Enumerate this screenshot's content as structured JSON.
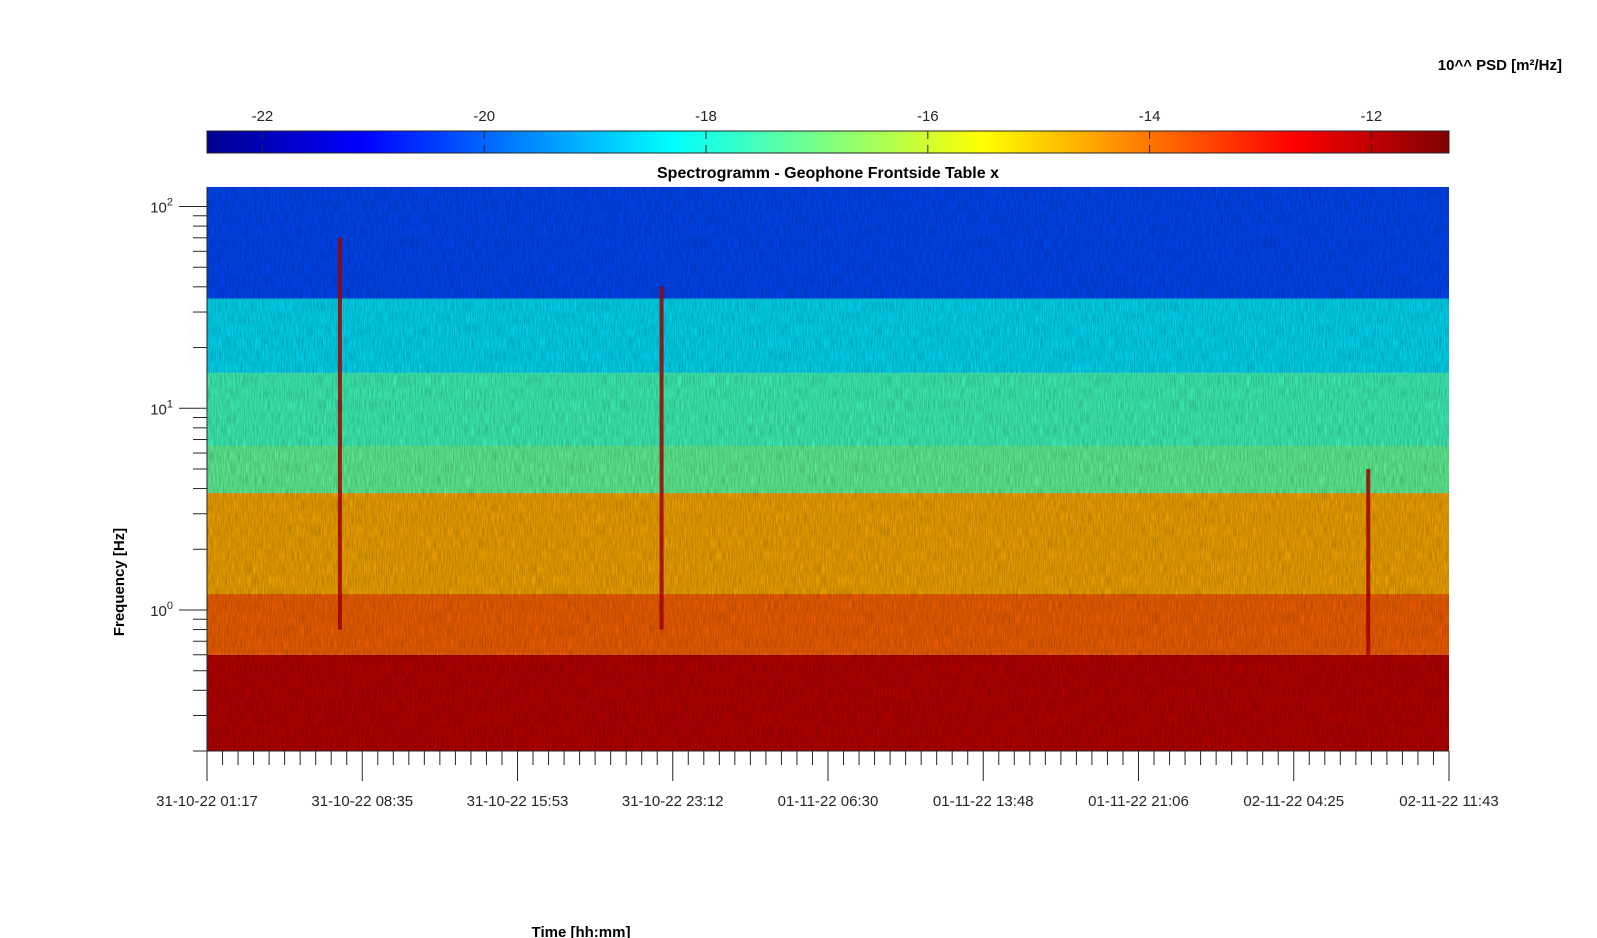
{
  "chart_data": {
    "type": "heatmap",
    "title": "Spectrogramm - Geophone Frontside Table x",
    "xlabel": "Time [hh:mm]",
    "ylabel": "Frequency [Hz]",
    "colorbar": {
      "label": "10^^ PSD [m²/Hz]",
      "range": [
        -22.5,
        -11.3
      ],
      "ticks": [
        -22,
        -20,
        -18,
        -16,
        -14,
        -12
      ],
      "colormap": "jet",
      "location": "top"
    },
    "x_ticks": [
      "31-10-22 01:17",
      "31-10-22 08:35",
      "31-10-22 15:53",
      "31-10-22 23:12",
      "01-11-22 06:30",
      "01-11-22 13:48",
      "01-11-22 21:06",
      "02-11-22 04:25",
      "02-11-22 11:43"
    ],
    "y_scale": "log",
    "y_range": [
      0.2,
      125
    ],
    "y_ticks": [
      {
        "base": "10",
        "exp": "0",
        "value": 1
      },
      {
        "base": "10",
        "exp": "1",
        "value": 10
      },
      {
        "base": "10",
        "exp": "2",
        "value": 100
      }
    ],
    "bands": [
      {
        "f_low": 0.2,
        "f_high": 0.6,
        "psd": -12.0
      },
      {
        "f_low": 0.6,
        "f_high": 1.2,
        "psd": -13.8
      },
      {
        "f_low": 1.2,
        "f_high": 3.8,
        "psd": -14.6
      },
      {
        "f_low": 3.8,
        "f_high": 6.5,
        "psd": -17.2
      },
      {
        "f_low": 6.5,
        "f_high": 15,
        "psd": -17.6
      },
      {
        "f_low": 15,
        "f_high": 35,
        "psd": -18.6
      },
      {
        "f_low": 35,
        "f_high": 125,
        "psd": -20.3
      }
    ],
    "transients": [
      {
        "time_index": 0.107,
        "f_low": 0.8,
        "f_high": 70,
        "psd": -12.0
      },
      {
        "time_index": 0.366,
        "f_low": 0.8,
        "f_high": 40,
        "psd": -12.0
      },
      {
        "time_index": 0.935,
        "f_low": 0.5,
        "f_high": 5,
        "psd": -12.0
      }
    ]
  }
}
